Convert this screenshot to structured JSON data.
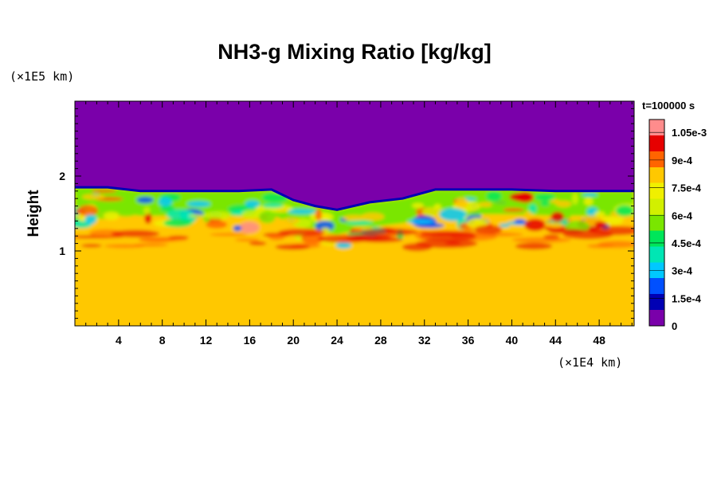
{
  "chart_data": {
    "type": "heatmap",
    "title": "NH3-g Mixing Ratio [kg/kg]",
    "xlabel": "",
    "ylabel": "Height",
    "x_unit": "(×1E4 km)",
    "y_unit": "(×1E5 km)",
    "time_label": "t=100000 s",
    "xlim": [
      0,
      51.2
    ],
    "ylim": [
      0,
      3.0
    ],
    "x_ticks": [
      4,
      8,
      12,
      16,
      20,
      24,
      28,
      32,
      36,
      40,
      44,
      48
    ],
    "x_tick_labels": [
      "4",
      "8",
      "12",
      "16",
      "20",
      "24",
      "28",
      "32",
      "36",
      "40",
      "44",
      "48"
    ],
    "y_ticks": [
      1,
      2
    ],
    "y_tick_labels": [
      "1",
      "2"
    ],
    "colorbar": {
      "min": 0,
      "max": 0.00112,
      "ticks": [
        0,
        0.00015,
        0.0003,
        0.00045,
        0.0006,
        0.00075,
        0.0009,
        0.00105
      ],
      "tick_labels": [
        "0",
        "1.5e-4",
        "3e-4",
        "4.5e-4",
        "6e-4",
        "7.5e-4",
        "9e-4",
        "1.05e-3"
      ],
      "colors": [
        "#7a00aa",
        "#0000b4",
        "#0050ff",
        "#00c8ff",
        "#00e6b4",
        "#00e65a",
        "#7ae600",
        "#d2f000",
        "#f0f000",
        "#ffc800",
        "#ff6400",
        "#e60000",
        "#ff8c8c"
      ]
    },
    "field_summary": {
      "upper_layer_value": 0,
      "lower_layer_value": 0.00078,
      "interface_height": [
        1.85,
        1.85,
        1.8,
        1.8,
        1.8,
        1.8,
        1.82,
        1.68,
        1.6,
        1.55,
        1.65,
        1.7,
        1.82,
        1.82,
        1.82,
        1.8,
        1.8,
        1.8
      ],
      "interface_x": [
        0,
        3,
        6,
        9,
        12,
        15,
        18,
        20,
        22,
        24,
        27,
        30,
        33,
        36,
        40,
        44,
        48,
        51.2
      ]
    }
  }
}
